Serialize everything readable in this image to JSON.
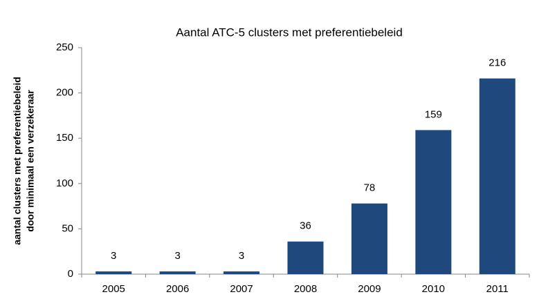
{
  "chart_data": {
    "type": "bar",
    "title": "Aantal ATC-5 clusters met preferentiebeleid",
    "ylabel": [
      "aantal clusters met preferentiebeleid",
      "door minimaal een verzekeraar"
    ],
    "categories": [
      "2005",
      "2006",
      "2007",
      "2008",
      "2009",
      "2010",
      "2011"
    ],
    "values": [
      3,
      3,
      3,
      36,
      78,
      159,
      216
    ],
    "color": "#1f497d",
    "ylim": [
      0,
      250
    ],
    "yticks": [
      0,
      50,
      100,
      150,
      200,
      250
    ],
    "grid": false
  }
}
